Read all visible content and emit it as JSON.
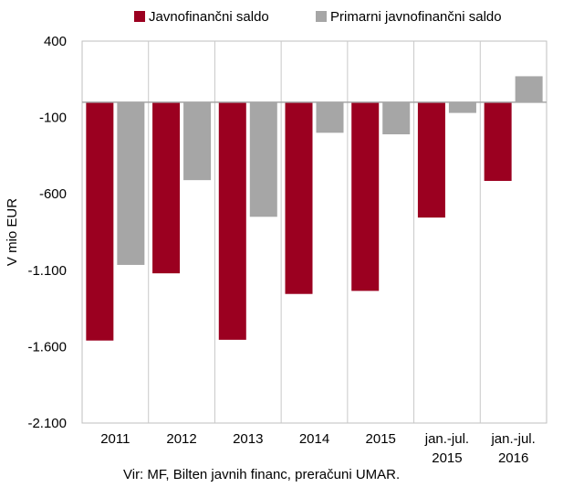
{
  "chart_data": {
    "type": "bar",
    "categories": [
      [
        "2011"
      ],
      [
        "2012"
      ],
      [
        "2013"
      ],
      [
        "2014"
      ],
      [
        "2015"
      ],
      [
        "jan.-jul.",
        "2015"
      ],
      [
        "jan.-jul.",
        "2016"
      ]
    ],
    "series": [
      {
        "name": "Javnofinančni saldo",
        "color": "#9b0020",
        "values": [
          -1560,
          -1120,
          -1555,
          -1255,
          -1235,
          -755,
          -515
        ]
      },
      {
        "name": "Primarni javnofinančni saldo",
        "color": "#a6a6a6",
        "values": [
          -1065,
          -510,
          -750,
          -200,
          -210,
          -70,
          170
        ]
      }
    ],
    "ylabel": "V mio EUR",
    "ylim": [
      -2100,
      400
    ],
    "yticks": [
      400,
      -100,
      -600,
      -1100,
      -1600,
      -2100
    ],
    "ytick_labels": [
      "400",
      "-100",
      "-600",
      "-1.100",
      "-1.600",
      "-2.100"
    ],
    "grid": "vertical",
    "legend_position": "top"
  },
  "source": "Vir: MF, Bilten javnih financ, preračuni UMAR."
}
